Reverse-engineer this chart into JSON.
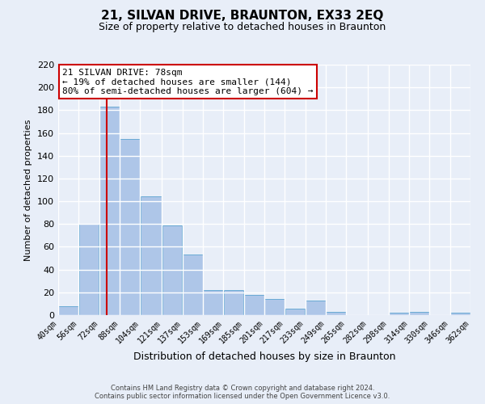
{
  "title": "21, SILVAN DRIVE, BRAUNTON, EX33 2EQ",
  "subtitle": "Size of property relative to detached houses in Braunton",
  "xlabel": "Distribution of detached houses by size in Braunton",
  "ylabel": "Number of detached properties",
  "bar_left_edges": [
    40,
    56,
    72,
    88,
    104,
    121,
    137,
    153,
    169,
    185,
    201,
    217,
    233,
    249,
    265,
    282,
    298,
    314,
    330,
    346
  ],
  "bar_widths": [
    16,
    16,
    16,
    16,
    17,
    16,
    16,
    16,
    16,
    16,
    16,
    16,
    16,
    16,
    17,
    16,
    16,
    16,
    16,
    16
  ],
  "bar_heights": [
    8,
    80,
    183,
    155,
    104,
    79,
    53,
    22,
    22,
    18,
    14,
    6,
    13,
    3,
    0,
    0,
    2,
    3,
    0,
    2
  ],
  "bar_color": "#aec6e8",
  "bar_edgecolor": "#6aaad4",
  "x_tick_labels": [
    "40sqm",
    "56sqm",
    "72sqm",
    "88sqm",
    "104sqm",
    "121sqm",
    "137sqm",
    "153sqm",
    "169sqm",
    "185sqm",
    "201sqm",
    "217sqm",
    "233sqm",
    "249sqm",
    "265sqm",
    "282sqm",
    "298sqm",
    "314sqm",
    "330sqm",
    "346sqm",
    "362sqm"
  ],
  "ylim": [
    0,
    220
  ],
  "yticks": [
    0,
    20,
    40,
    60,
    80,
    100,
    120,
    140,
    160,
    180,
    200,
    220
  ],
  "vline_x": 78,
  "vline_color": "#cc0000",
  "annotation_line1": "21 SILVAN DRIVE: 78sqm",
  "annotation_line2": "← 19% of detached houses are smaller (144)",
  "annotation_line3": "80% of semi-detached houses are larger (604) →",
  "annotation_box_facecolor": "#ffffff",
  "annotation_box_edgecolor": "#cc0000",
  "footer_line1": "Contains HM Land Registry data © Crown copyright and database right 2024.",
  "footer_line2": "Contains public sector information licensed under the Open Government Licence v3.0.",
  "background_color": "#e8eef8",
  "grid_color": "#ffffff",
  "title_fontsize": 11,
  "subtitle_fontsize": 9,
  "ylabel_fontsize": 8,
  "xlabel_fontsize": 9,
  "tick_fontsize": 7,
  "ann_fontsize": 8,
  "footer_fontsize": 6
}
